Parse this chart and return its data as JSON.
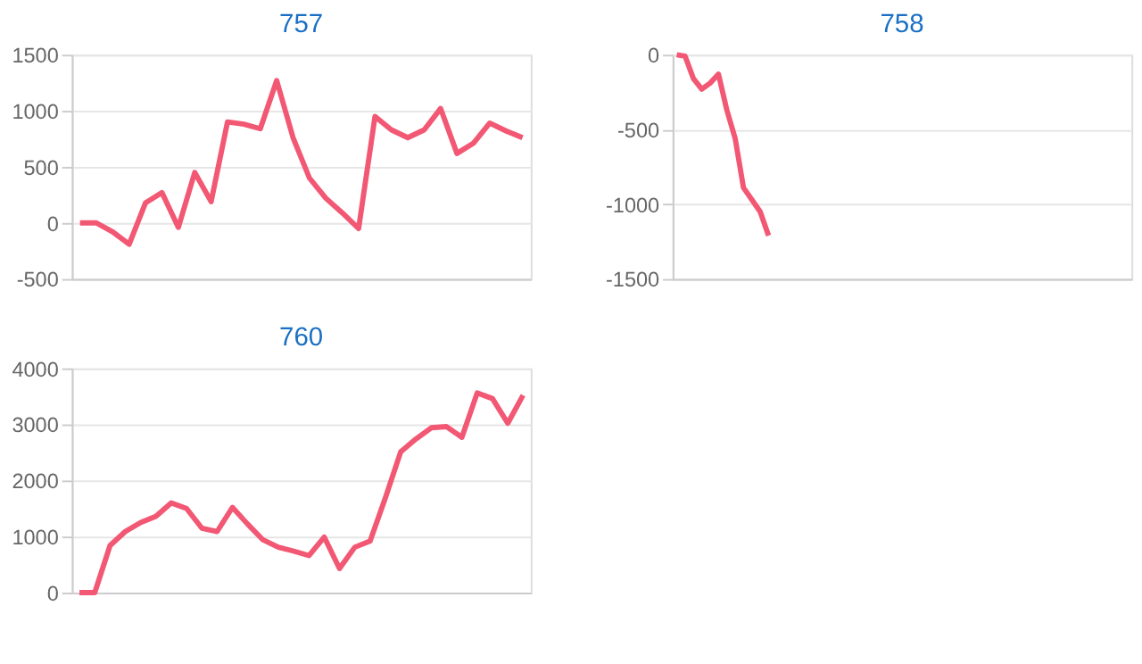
{
  "chart_data": [
    {
      "type": "line",
      "title": "757",
      "color": "#f25874",
      "ylim": [
        -500,
        1500
      ],
      "yticks": [
        -500,
        0,
        500,
        1000,
        1500
      ],
      "grid": "y",
      "tick_labels": "y",
      "categories": [
        null,
        null,
        null,
        null,
        null,
        null,
        null,
        null,
        null,
        null,
        null,
        null,
        null,
        null,
        null,
        null,
        null,
        null,
        null,
        null,
        null,
        null,
        null,
        null,
        null,
        null,
        null,
        null
      ],
      "values": [
        0,
        0,
        -80,
        -190,
        180,
        270,
        -40,
        450,
        190,
        900,
        880,
        840,
        1270,
        760,
        400,
        220,
        90,
        -50,
        950,
        830,
        760,
        830,
        1020,
        620,
        710,
        890,
        820,
        760
      ]
    },
    {
      "type": "line",
      "title": "758",
      "color": "#f25874",
      "ylim": [
        -1500,
        0
      ],
      "yticks": [
        -1500,
        -1000,
        -500,
        0
      ],
      "grid": "y",
      "tick_labels": "y",
      "categories": [
        null,
        null,
        null,
        null,
        null,
        null,
        null,
        null,
        null,
        null,
        null,
        null,
        null,
        null,
        null,
        null,
        null,
        null,
        null,
        null,
        null,
        null,
        null,
        null,
        null,
        null,
        null,
        null,
        null,
        null,
        null,
        null,
        null,
        null,
        null,
        null,
        null,
        null,
        null,
        null,
        null,
        null,
        null,
        null,
        null,
        null,
        null,
        null,
        null,
        null,
        null,
        null,
        null,
        null,
        null
      ],
      "values": [
        0,
        -10,
        -160,
        -230,
        -190,
        -130,
        -370,
        -560,
        -890,
        -970,
        -1050,
        -1210,
        null,
        null,
        null,
        null,
        null,
        null,
        null,
        null,
        null,
        null,
        null,
        null,
        null,
        null,
        null,
        null,
        null,
        null,
        null,
        null,
        null,
        null,
        null,
        null,
        null,
        null,
        null,
        null,
        null,
        null,
        null,
        null,
        null,
        null,
        null,
        null,
        null,
        null,
        null,
        null,
        null,
        null,
        null
      ]
    },
    {
      "type": "line",
      "title": "760",
      "color": "#f25874",
      "ylim": [
        0,
        4000
      ],
      "yticks": [
        0,
        1000,
        2000,
        3000,
        4000
      ],
      "grid": "y",
      "tick_labels": "y",
      "categories": [
        null,
        null,
        null,
        null,
        null,
        null,
        null,
        null,
        null,
        null,
        null,
        null,
        null,
        null,
        null,
        null,
        null,
        null,
        null,
        null,
        null,
        null,
        null,
        null,
        null,
        null,
        null,
        null,
        null,
        null
      ],
      "values": [
        0,
        0,
        840,
        1090,
        1250,
        1360,
        1600,
        1500,
        1150,
        1090,
        1520,
        1220,
        940,
        810,
        740,
        660,
        990,
        430,
        810,
        920,
        1690,
        2510,
        2740,
        2940,
        2960,
        2770,
        3560,
        3460,
        3020,
        3520
      ]
    }
  ]
}
